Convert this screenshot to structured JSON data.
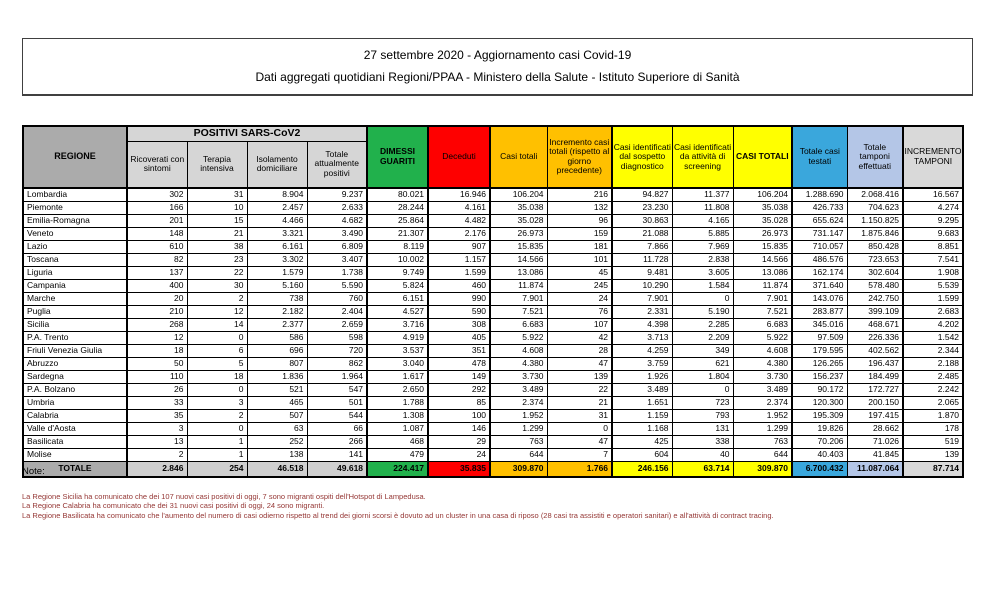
{
  "title": {
    "line1": "27 settembre 2020 - Aggiornamento casi Covid-19",
    "line2": "Dati aggregati quotidiani Regioni/PPAA - Ministero della Salute - Istituto Superiore di Sanità"
  },
  "table": {
    "col_region": "REGIONE",
    "group_header": "POSITIVI SARS-CoV2",
    "columns": [
      "Ricoverati con sintomi",
      "Terapia intensiva",
      "Isolamento domiciliare",
      "Totale attualmente positivi",
      "DIMESSI GUARITI",
      "Deceduti",
      "Casi totali",
      "Incremento casi totali (rispetto al giorno precedente)",
      "Casi identificati dal sospetto diagnostico",
      "Casi identificati da attività di screening",
      "CASI TOTALI",
      "Totale casi testati",
      "Totale tamponi effettuati",
      "INCREMENTO TAMPONI"
    ],
    "rows": [
      {
        "region": "Lombardia",
        "values": [
          "302",
          "31",
          "8.904",
          "9.237",
          "80.021",
          "16.946",
          "106.204",
          "216",
          "94.827",
          "11.377",
          "106.204",
          "1.288.690",
          "2.068.416",
          "16.567"
        ]
      },
      {
        "region": "Piemonte",
        "values": [
          "166",
          "10",
          "2.457",
          "2.633",
          "28.244",
          "4.161",
          "35.038",
          "132",
          "23.230",
          "11.808",
          "35.038",
          "426.733",
          "704.623",
          "4.274"
        ]
      },
      {
        "region": "Emilia-Romagna",
        "values": [
          "201",
          "15",
          "4.466",
          "4.682",
          "25.864",
          "4.482",
          "35.028",
          "96",
          "30.863",
          "4.165",
          "35.028",
          "655.624",
          "1.150.825",
          "9.295"
        ]
      },
      {
        "region": "Veneto",
        "values": [
          "148",
          "21",
          "3.321",
          "3.490",
          "21.307",
          "2.176",
          "26.973",
          "159",
          "21.088",
          "5.885",
          "26.973",
          "731.147",
          "1.875.846",
          "9.683"
        ]
      },
      {
        "region": "Lazio",
        "values": [
          "610",
          "38",
          "6.161",
          "6.809",
          "8.119",
          "907",
          "15.835",
          "181",
          "7.866",
          "7.969",
          "15.835",
          "710.057",
          "850.428",
          "8.851"
        ]
      },
      {
        "region": "Toscana",
        "values": [
          "82",
          "23",
          "3.302",
          "3.407",
          "10.002",
          "1.157",
          "14.566",
          "101",
          "11.728",
          "2.838",
          "14.566",
          "486.576",
          "723.653",
          "7.541"
        ]
      },
      {
        "region": "Liguria",
        "values": [
          "137",
          "22",
          "1.579",
          "1.738",
          "9.749",
          "1.599",
          "13.086",
          "45",
          "9.481",
          "3.605",
          "13.086",
          "162.174",
          "302.604",
          "1.908"
        ]
      },
      {
        "region": "Campania",
        "values": [
          "400",
          "30",
          "5.160",
          "5.590",
          "5.824",
          "460",
          "11.874",
          "245",
          "10.290",
          "1.584",
          "11.874",
          "371.640",
          "578.480",
          "5.539"
        ]
      },
      {
        "region": "Marche",
        "values": [
          "20",
          "2",
          "738",
          "760",
          "6.151",
          "990",
          "7.901",
          "24",
          "7.901",
          "0",
          "7.901",
          "143.076",
          "242.750",
          "1.599"
        ]
      },
      {
        "region": "Puglia",
        "values": [
          "210",
          "12",
          "2.182",
          "2.404",
          "4.527",
          "590",
          "7.521",
          "76",
          "2.331",
          "5.190",
          "7.521",
          "283.877",
          "399.109",
          "2.683"
        ]
      },
      {
        "region": "Sicilia",
        "values": [
          "268",
          "14",
          "2.377",
          "2.659",
          "3.716",
          "308",
          "6.683",
          "107",
          "4.398",
          "2.285",
          "6.683",
          "345.016",
          "468.671",
          "4.202"
        ]
      },
      {
        "region": "P.A. Trento",
        "values": [
          "12",
          "0",
          "586",
          "598",
          "4.919",
          "405",
          "5.922",
          "42",
          "3.713",
          "2.209",
          "5.922",
          "97.509",
          "226.336",
          "1.542"
        ]
      },
      {
        "region": "Friuli Venezia Giulia",
        "values": [
          "18",
          "6",
          "696",
          "720",
          "3.537",
          "351",
          "4.608",
          "28",
          "4.259",
          "349",
          "4.608",
          "179.595",
          "402.562",
          "2.344"
        ]
      },
      {
        "region": "Abruzzo",
        "values": [
          "50",
          "5",
          "807",
          "862",
          "3.040",
          "478",
          "4.380",
          "47",
          "3.759",
          "621",
          "4.380",
          "126.265",
          "196.437",
          "2.188"
        ]
      },
      {
        "region": "Sardegna",
        "values": [
          "110",
          "18",
          "1.836",
          "1.964",
          "1.617",
          "149",
          "3.730",
          "139",
          "1.926",
          "1.804",
          "3.730",
          "156.237",
          "184.499",
          "2.485"
        ]
      },
      {
        "region": "P.A. Bolzano",
        "values": [
          "26",
          "0",
          "521",
          "547",
          "2.650",
          "292",
          "3.489",
          "22",
          "3.489",
          "0",
          "3.489",
          "90.172",
          "172.727",
          "2.242"
        ]
      },
      {
        "region": "Umbria",
        "values": [
          "33",
          "3",
          "465",
          "501",
          "1.788",
          "85",
          "2.374",
          "21",
          "1.651",
          "723",
          "2.374",
          "120.300",
          "200.150",
          "2.065"
        ]
      },
      {
        "region": "Calabria",
        "values": [
          "35",
          "2",
          "507",
          "544",
          "1.308",
          "100",
          "1.952",
          "31",
          "1.159",
          "793",
          "1.952",
          "195.309",
          "197.415",
          "1.870"
        ]
      },
      {
        "region": "Valle d'Aosta",
        "values": [
          "3",
          "0",
          "63",
          "66",
          "1.087",
          "146",
          "1.299",
          "0",
          "1.168",
          "131",
          "1.299",
          "19.826",
          "28.662",
          "178"
        ]
      },
      {
        "region": "Basilicata",
        "values": [
          "13",
          "1",
          "252",
          "266",
          "468",
          "29",
          "763",
          "47",
          "425",
          "338",
          "763",
          "70.206",
          "71.026",
          "519"
        ]
      },
      {
        "region": "Molise",
        "values": [
          "2",
          "1",
          "138",
          "141",
          "479",
          "24",
          "644",
          "7",
          "604",
          "40",
          "644",
          "40.403",
          "41.845",
          "139"
        ]
      }
    ],
    "total": {
      "region": "TOTALE",
      "values": [
        "2.846",
        "254",
        "46.518",
        "49.618",
        "224.417",
        "35.835",
        "309.870",
        "1.766",
        "246.156",
        "63.714",
        "309.870",
        "6.700.432",
        "11.087.064",
        "87.714"
      ]
    }
  },
  "notes": {
    "label": "Note:",
    "items": [
      "La Regione Sicilia ha comunicato che dei 107 nuovi casi positivi di oggi, 7 sono migranti ospiti dell'Hotspot di Lampedusa.",
      "La Regione Calabria ha comunicato che dei 31 nuovi casi positivi di oggi, 24 sono migranti.",
      "La Regione Basilicata ha comunicato che l'aumento del numero di casi odierno rispetto al trend dei giorni scorsi è dovuto ad un cluster in una casa di riposo (28 casi tra assistiti e operatori sanitari) e all'attività di contract tracing."
    ]
  },
  "colors": {
    "header_dark_gray": "#ababab",
    "header_light_gray": "#d6d6d6",
    "green": "#21b14c",
    "red": "#fe0000",
    "orange": "#ffc000",
    "yellow": "#ffff00",
    "blue": "#3aa7dc",
    "light_periwinkle": "#b4c6e7",
    "light_gray": "#d9d9d9",
    "total_positivi_gray": "#cfcfcf",
    "note_text": "#953735"
  }
}
